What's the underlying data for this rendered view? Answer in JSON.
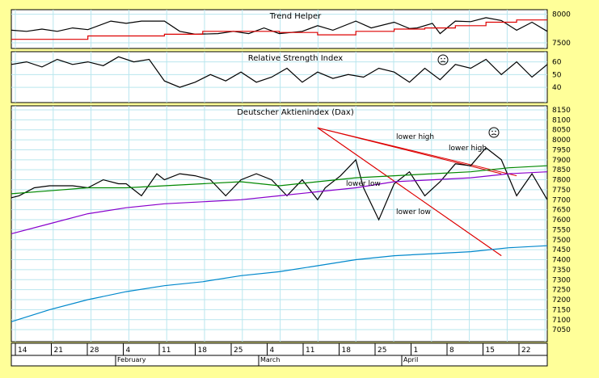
{
  "chart_data": [
    {
      "type": "line",
      "title": "Trend  Helper",
      "y_ticks": [
        7500,
        8000
      ],
      "ylim": [
        7400,
        8080
      ],
      "x_ticks": [
        0,
        5,
        10,
        15,
        20,
        25,
        30,
        35,
        40,
        45,
        50,
        55,
        60,
        65,
        70
      ],
      "series": [
        {
          "color": "#000000",
          "x": [
            0,
            2,
            4,
            6,
            8,
            10,
            13,
            15,
            17,
            20,
            22,
            24,
            27,
            29,
            31,
            33,
            35,
            38,
            40,
            42,
            45,
            47,
            50,
            52,
            53,
            55,
            56,
            58,
            60,
            62,
            64,
            66,
            68,
            70
          ],
          "values": [
            7720,
            7700,
            7740,
            7700,
            7760,
            7730,
            7880,
            7840,
            7880,
            7880,
            7700,
            7650,
            7660,
            7700,
            7660,
            7760,
            7660,
            7700,
            7800,
            7720,
            7880,
            7760,
            7860,
            7750,
            7760,
            7840,
            7660,
            7880,
            7870,
            7940,
            7890,
            7720,
            7860,
            7700
          ]
        },
        {
          "color": "#dd0000",
          "step": true,
          "x": [
            0,
            10,
            10,
            20,
            20,
            25,
            25,
            35,
            35,
            40,
            40,
            45,
            45,
            50,
            50,
            54,
            54,
            58,
            58,
            62,
            62,
            66,
            66,
            70
          ],
          "values": [
            7560,
            7560,
            7620,
            7620,
            7650,
            7650,
            7700,
            7700,
            7680,
            7680,
            7640,
            7640,
            7700,
            7700,
            7740,
            7740,
            7760,
            7760,
            7800,
            7800,
            7860,
            7860,
            7900,
            7900
          ]
        }
      ]
    },
    {
      "type": "line",
      "title": "Relative Strength Index",
      "y_ticks": [
        40,
        50,
        60
      ],
      "ylim": [
        28,
        68
      ],
      "series": [
        {
          "color": "#000000",
          "x": [
            0,
            2,
            4,
            6,
            8,
            10,
            12,
            14,
            16,
            18,
            20,
            22,
            24,
            26,
            28,
            30,
            32,
            34,
            36,
            38,
            40,
            42,
            44,
            46,
            48,
            50,
            52,
            54,
            56,
            58,
            60,
            62,
            64,
            66,
            68,
            70
          ],
          "values": [
            58,
            60,
            56,
            62,
            58,
            60,
            57,
            64,
            60,
            62,
            45,
            40,
            44,
            50,
            45,
            52,
            44,
            48,
            55,
            44,
            52,
            47,
            50,
            48,
            55,
            52,
            44,
            55,
            46,
            58,
            55,
            62,
            50,
            60,
            48,
            58
          ]
        }
      ]
    },
    {
      "type": "line",
      "title": "Deutscher Aktienindex (Dax)",
      "ylim": [
        6990,
        8170
      ],
      "y_ticks": [
        7050,
        7100,
        7150,
        7200,
        7250,
        7300,
        7350,
        7400,
        7450,
        7500,
        7550,
        7600,
        7650,
        7700,
        7750,
        7800,
        7850,
        7900,
        7950,
        8000,
        8050,
        8100,
        8150
      ],
      "x_ticks": [
        "14",
        "21",
        "28",
        "4",
        "11",
        "18",
        "25",
        "4",
        "11",
        "18",
        "25",
        "1",
        "8",
        "15",
        "22"
      ],
      "month_labels": [
        "February",
        "March",
        "April"
      ],
      "annotations": [
        "lower high",
        "lower high",
        "lower low",
        "lower low"
      ],
      "trend_lines": [
        {
          "name": "down-1",
          "x": [
            40,
            66
          ],
          "values": [
            8060,
            7820
          ]
        },
        {
          "name": "down-2",
          "x": [
            40,
            64
          ],
          "values": [
            8060,
            7830
          ]
        },
        {
          "name": "down-3",
          "x": [
            40,
            64
          ],
          "values": [
            8060,
            7420
          ]
        },
        {
          "name": "down-4",
          "x": [
            40,
            64
          ],
          "values": [
            8060,
            7420
          ]
        }
      ],
      "series": [
        {
          "color": "#000000",
          "x": [
            0,
            1,
            3,
            5,
            7,
            8,
            10,
            12,
            14,
            15,
            17,
            19,
            20,
            22,
            24,
            26,
            28,
            30,
            32,
            34,
            36,
            38,
            40,
            41,
            43,
            45,
            46,
            48,
            50,
            52,
            54,
            56,
            58,
            60,
            62,
            64,
            66,
            68,
            70
          ],
          "values": [
            7710,
            7720,
            7760,
            7770,
            7770,
            7770,
            7760,
            7800,
            7780,
            7780,
            7720,
            7830,
            7800,
            7830,
            7820,
            7800,
            7720,
            7800,
            7830,
            7800,
            7720,
            7800,
            7700,
            7760,
            7820,
            7900,
            7760,
            7600,
            7780,
            7840,
            7720,
            7790,
            7880,
            7870,
            7960,
            7900,
            7720,
            7830,
            7700
          ]
        },
        {
          "color": "#008800",
          "x": [
            0,
            5,
            10,
            15,
            20,
            25,
            30,
            35,
            40,
            45,
            50,
            55,
            60,
            65,
            70
          ],
          "values": [
            7730,
            7745,
            7760,
            7760,
            7770,
            7780,
            7790,
            7770,
            7790,
            7810,
            7820,
            7830,
            7840,
            7860,
            7870
          ]
        },
        {
          "color": "#8800cc",
          "x": [
            0,
            5,
            10,
            15,
            20,
            25,
            30,
            35,
            40,
            45,
            50,
            55,
            60,
            65,
            70
          ],
          "values": [
            7530,
            7580,
            7630,
            7660,
            7680,
            7690,
            7700,
            7720,
            7740,
            7760,
            7790,
            7800,
            7810,
            7830,
            7840
          ]
        },
        {
          "color": "#0088cc",
          "x": [
            0,
            5,
            10,
            15,
            20,
            25,
            30,
            35,
            40,
            45,
            50,
            55,
            60,
            65,
            70
          ],
          "values": [
            7090,
            7150,
            7200,
            7240,
            7270,
            7290,
            7320,
            7340,
            7370,
            7400,
            7420,
            7430,
            7440,
            7460,
            7470
          ]
        }
      ]
    }
  ]
}
